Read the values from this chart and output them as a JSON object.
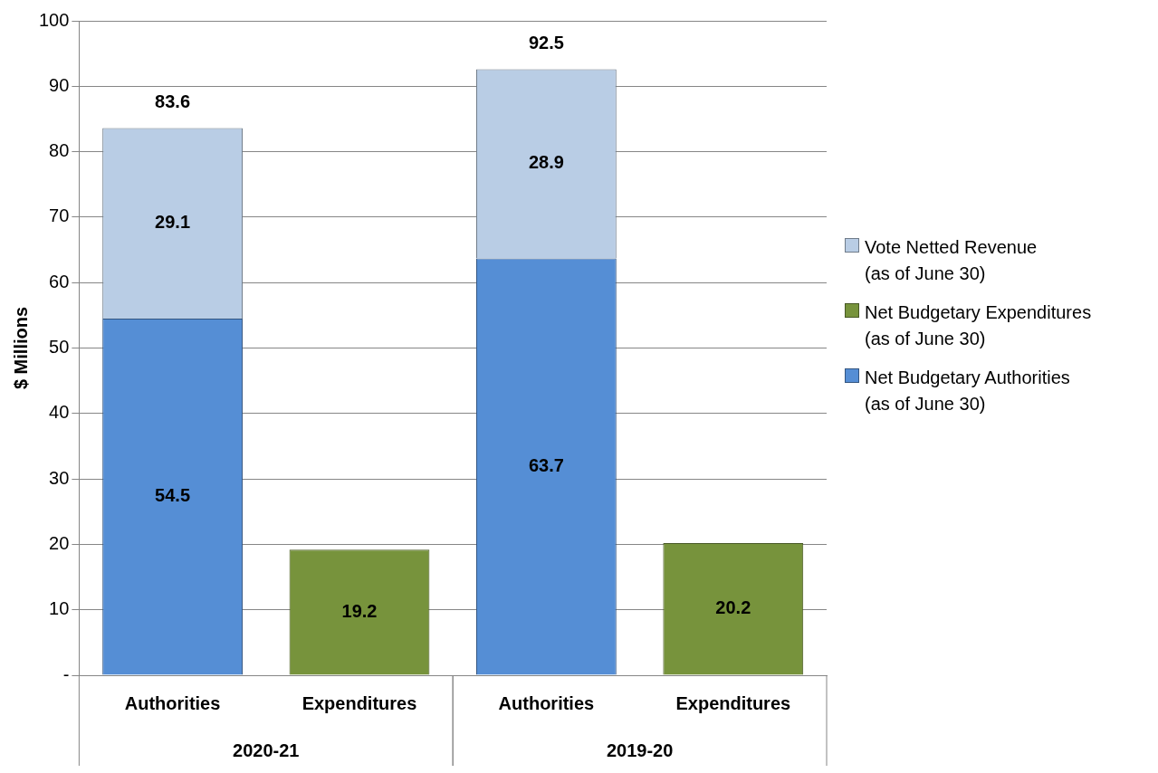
{
  "chart_data": {
    "type": "bar",
    "stacked": true,
    "ylabel": "$ Millions",
    "categories": [
      "Authorities",
      "Expenditures",
      "Authorities",
      "Expenditures"
    ],
    "series": [
      {
        "name": "Net Budgetary Authorities\n(as of June 30)",
        "color": "#558ed5",
        "values": [
          54.5,
          null,
          63.7,
          null
        ]
      },
      {
        "name": "Net Budgetary Expenditures\n(as of June 30)",
        "color": "#77933c",
        "values": [
          null,
          19.2,
          null,
          20.2
        ]
      },
      {
        "name": "Vote Netted Revenue\n(as of June 30)",
        "color": "#b9cde5",
        "values": [
          29.1,
          null,
          28.9,
          null
        ]
      }
    ],
    "totals": [
      "83.6",
      null,
      "92.5",
      null
    ],
    "data_labels": true,
    "ylim": [
      0,
      100
    ],
    "yticks": [
      {
        "value": 0,
        "label": "-"
      },
      10,
      20,
      30,
      40,
      50,
      60,
      70,
      80,
      90,
      100
    ],
    "grid": "y",
    "legend": "right",
    "annotations": [
      "2020-21",
      "2019-20"
    ]
  }
}
